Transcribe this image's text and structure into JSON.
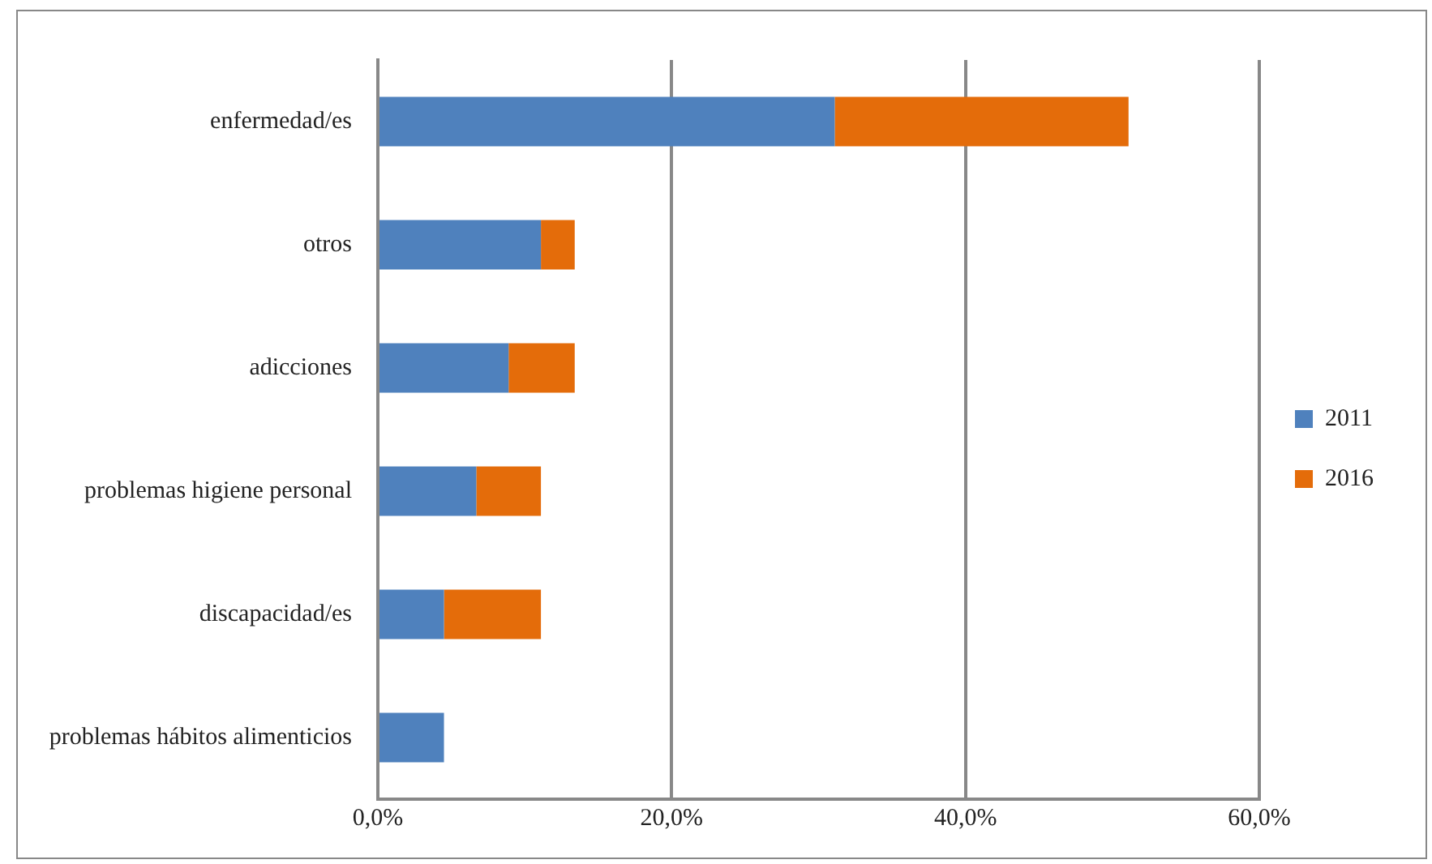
{
  "chart_data": {
    "type": "bar",
    "orientation": "horizontal",
    "stacked": true,
    "categories": [
      "enfermedad/es",
      "otros",
      "adicciones",
      "problemas higiene personal",
      "discapacidad/es",
      "problemas hábitos alimenticios"
    ],
    "series": [
      {
        "name": "2011",
        "color": "#4f81bd",
        "values": [
          31.1,
          11.1,
          8.9,
          6.7,
          4.5,
          4.5
        ]
      },
      {
        "name": "2016",
        "color": "#e46c0a",
        "values": [
          20.0,
          2.3,
          4.5,
          4.4,
          6.6,
          null
        ]
      }
    ],
    "xlim": [
      0,
      60
    ],
    "xticks": [
      {
        "value": 0,
        "label": "0,0%"
      },
      {
        "value": 20,
        "label": "20,0%"
      },
      {
        "value": 40,
        "label": "40,0%"
      },
      {
        "value": 60,
        "label": "60,0%"
      }
    ],
    "grid": "x",
    "legend": "right"
  }
}
